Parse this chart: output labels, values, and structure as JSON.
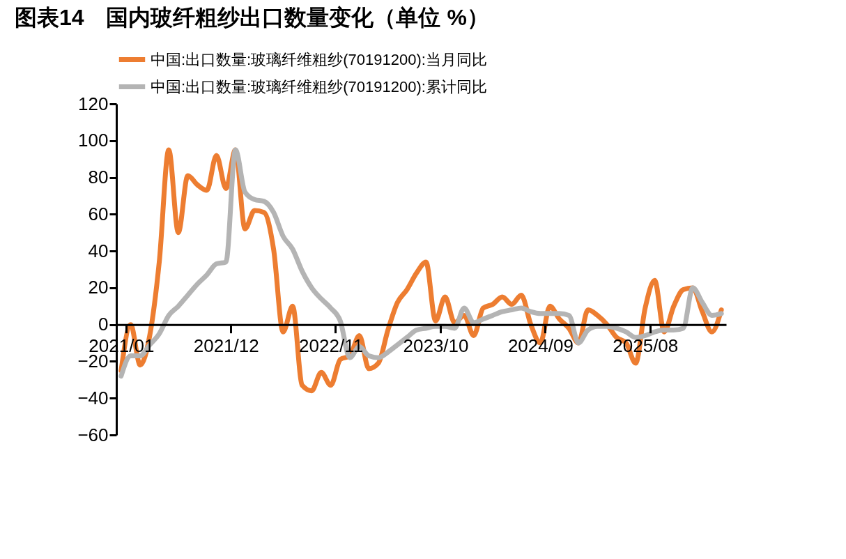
{
  "chart_data": {
    "type": "line",
    "title": "图表14　国内玻纤粗纱出口数量变化（单位 %）",
    "categories": [
      "2021/01",
      null,
      null,
      null,
      null,
      null,
      null,
      null,
      null,
      null,
      null,
      "2021/12",
      null,
      null,
      null,
      null,
      null,
      null,
      null,
      null,
      null,
      null,
      "2022/11",
      null,
      null,
      null,
      null,
      null,
      null,
      null,
      null,
      null,
      null,
      "2023/10",
      null,
      null,
      null,
      null,
      null,
      null,
      null,
      null,
      null,
      null,
      "2024/09",
      null,
      null,
      null,
      null,
      null,
      null,
      null,
      null,
      null,
      null,
      "2025/08",
      null,
      null,
      null,
      null,
      null,
      null,
      null,
      null
    ],
    "series": [
      {
        "name": "中国:出口数量:玻璃纤维粗纱(70191200):当月同比",
        "color": "#ed7d31",
        "values": [
          -25,
          0,
          -22,
          -6,
          34,
          95,
          50,
          81,
          76,
          73,
          92,
          74,
          95,
          52,
          62,
          61,
          41,
          -4,
          10,
          -33,
          -36,
          -26,
          -33,
          -19,
          -17,
          -6,
          -24,
          -21,
          -3,
          12,
          19,
          28,
          34,
          2,
          15,
          1,
          5,
          -6,
          9,
          11,
          15,
          11,
          16,
          0,
          -10,
          10,
          3,
          -2,
          -10,
          8,
          5,
          0,
          -7,
          -10,
          -21,
          9,
          24,
          -4,
          10,
          19,
          20,
          7,
          -4,
          8
        ]
      },
      {
        "name": "中国:出口数量:玻璃纤维粗纱(70191200):累计同比",
        "color": "#b4b4b4",
        "values": [
          -28,
          -17,
          -17,
          -11,
          -5,
          5,
          10,
          16,
          22,
          27,
          33,
          34,
          95,
          72,
          68,
          67,
          61,
          48,
          41,
          29,
          20,
          14,
          9,
          2,
          -18,
          -12,
          -17,
          -18,
          -15,
          -11,
          -7,
          -3,
          -2,
          -1,
          -1,
          -2,
          9,
          1,
          3,
          5,
          7,
          8,
          9,
          7,
          6,
          6,
          6,
          5,
          -10,
          -3,
          -1,
          -1,
          -2,
          -4,
          -7,
          -6,
          -4,
          -3,
          -3,
          -2,
          20,
          12,
          5,
          6
        ]
      }
    ],
    "ylim": [
      -60,
      120
    ],
    "yticks": [
      -60,
      -40,
      -20,
      0,
      20,
      40,
      60,
      80,
      100,
      120
    ],
    "grid": false,
    "legend": "top",
    "marker": "none",
    "line_style": "solid"
  }
}
